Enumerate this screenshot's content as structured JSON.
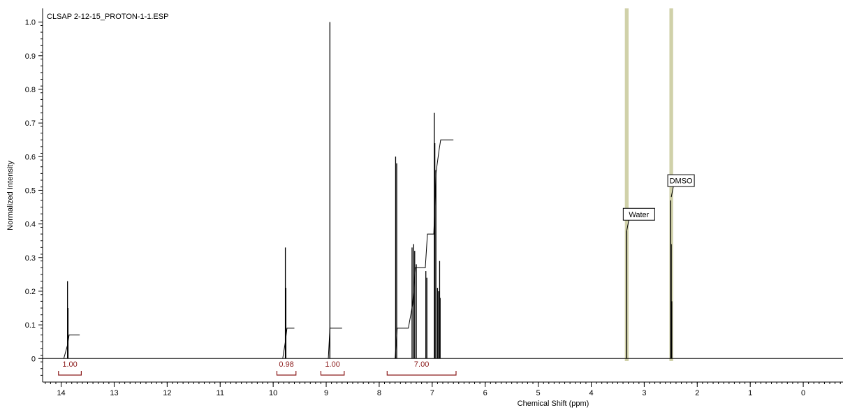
{
  "chart_data": {
    "type": "line",
    "title": "CLSAP 2-12-15_PROTON-1-1.ESP",
    "xlabel": "Chemical Shift (ppm)",
    "ylabel": "Normalized Intensity",
    "xlim": [
      14.35,
      -0.75
    ],
    "ylim": [
      -0.07,
      1.02
    ],
    "x_ticks": [
      14,
      13,
      12,
      11,
      10,
      9,
      8,
      7,
      6,
      5,
      4,
      3,
      2,
      1,
      0
    ],
    "y_ticks": [
      "0",
      "0.1",
      "0.2",
      "0.3",
      "0.4",
      "0.5",
      "0.6",
      "0.7",
      "0.8",
      "0.9",
      "1.0"
    ],
    "baseline_range": [
      14.35,
      -0.75
    ],
    "peaks": [
      {
        "shift": 13.88,
        "height": 0.23
      },
      {
        "shift": 13.87,
        "height": 0.15
      },
      {
        "shift": 9.77,
        "height": 0.33
      },
      {
        "shift": 9.76,
        "height": 0.21
      },
      {
        "shift": 8.93,
        "height": 1.0
      },
      {
        "shift": 8.93,
        "height": 0.05
      },
      {
        "shift": 7.69,
        "height": 0.6
      },
      {
        "shift": 7.67,
        "height": 0.58
      },
      {
        "shift": 7.38,
        "height": 0.33
      },
      {
        "shift": 7.35,
        "height": 0.34
      },
      {
        "shift": 7.33,
        "height": 0.32
      },
      {
        "shift": 7.3,
        "height": 0.28
      },
      {
        "shift": 7.12,
        "height": 0.26
      },
      {
        "shift": 7.1,
        "height": 0.24
      },
      {
        "shift": 6.96,
        "height": 0.73
      },
      {
        "shift": 6.95,
        "height": 0.64
      },
      {
        "shift": 6.93,
        "height": 0.56
      },
      {
        "shift": 6.9,
        "height": 0.21
      },
      {
        "shift": 6.88,
        "height": 0.2
      },
      {
        "shift": 6.86,
        "height": 0.29
      },
      {
        "shift": 6.85,
        "height": 0.18
      },
      {
        "shift": 3.33,
        "height": 0.38
      },
      {
        "shift": 2.5,
        "height": 0.47
      },
      {
        "shift": 2.49,
        "height": 0.34
      },
      {
        "shift": 2.48,
        "height": 0.17
      }
    ],
    "integral_curves": [
      {
        "points": [
          [
            13.95,
            0.0
          ],
          [
            13.88,
            0.04
          ],
          [
            13.85,
            0.07
          ],
          [
            13.65,
            0.07
          ]
        ]
      },
      {
        "points": [
          [
            9.82,
            0.0
          ],
          [
            9.77,
            0.05
          ],
          [
            9.74,
            0.09
          ],
          [
            9.6,
            0.09
          ]
        ]
      },
      {
        "points": [
          [
            8.96,
            0.0
          ],
          [
            8.93,
            0.09
          ],
          [
            8.7,
            0.09
          ]
        ]
      },
      {
        "points": [
          [
            7.7,
            0.0
          ],
          [
            7.66,
            0.09
          ],
          [
            7.45,
            0.09
          ],
          [
            7.37,
            0.16
          ],
          [
            7.32,
            0.27
          ],
          [
            7.13,
            0.27
          ],
          [
            7.09,
            0.37
          ],
          [
            6.97,
            0.37
          ],
          [
            6.93,
            0.55
          ],
          [
            6.87,
            0.62
          ],
          [
            6.84,
            0.65
          ],
          [
            6.6,
            0.65
          ]
        ]
      }
    ],
    "integrals": [
      {
        "label": "1.00",
        "from": 14.05,
        "to": 13.62
      },
      {
        "label": "0.98",
        "from": 9.93,
        "to": 9.57
      },
      {
        "label": "1.00",
        "from": 9.1,
        "to": 8.66
      },
      {
        "label": "7.00",
        "from": 7.85,
        "to": 6.55
      }
    ],
    "highlight_bands": [
      {
        "center": 3.33,
        "width": 0.07,
        "color": "#c8c99a"
      },
      {
        "center": 2.49,
        "width": 0.07,
        "color": "#c8c99a"
      }
    ],
    "annotations": [
      {
        "label": "Water",
        "x": 3.33,
        "y": 0.38
      },
      {
        "label": "DMSO",
        "x": 2.49,
        "y": 0.48
      }
    ],
    "colors": {
      "spectrum": "#000000",
      "integral_marker": "#8b1a1a",
      "integral_label": "#8b1a1a",
      "band": "#c8c99a",
      "peak_red": "#8b1a1a"
    }
  }
}
